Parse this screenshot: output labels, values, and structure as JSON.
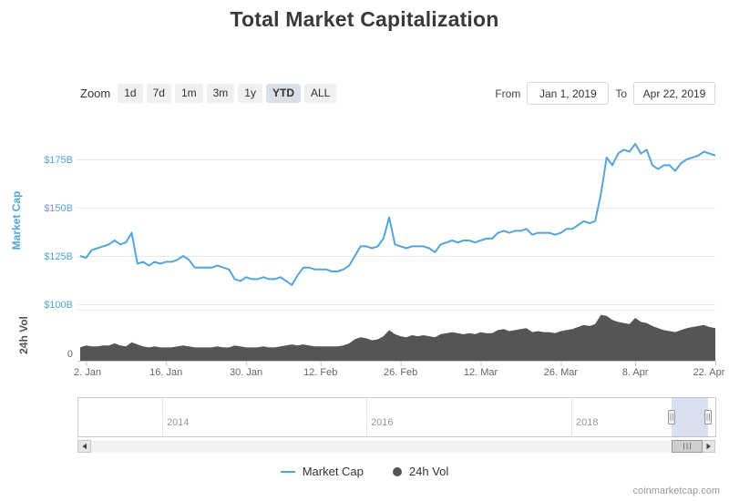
{
  "title": "Total Market Capitalization",
  "watermark": "coinmarketcap.com",
  "colors": {
    "accent": "#54a5da",
    "volume": "#555555",
    "grid": "#e6e6e6",
    "axis_line": "#c9c9c9",
    "muted_text": "#666666",
    "navigator_mask": "rgba(102,133,194,0.25)"
  },
  "range_selector": {
    "zoom_label": "Zoom",
    "buttons": [
      "1d",
      "7d",
      "1m",
      "3m",
      "1y",
      "YTD",
      "ALL"
    ],
    "selected": "YTD",
    "from_label": "From",
    "from_value": "Jan 1, 2019",
    "to_label": "To",
    "to_value": "Apr 22, 2019"
  },
  "legend": {
    "items": [
      {
        "label": "Market Cap",
        "marker": "line",
        "color": "#54a5da"
      },
      {
        "label": "24h Vol",
        "marker": "circle",
        "color": "#555555"
      }
    ]
  },
  "navigator": {
    "year_ticks": [
      "2014",
      "2016",
      "2018"
    ],
    "selected_range": [
      "Jan 1, 2019",
      "Apr 22, 2019"
    ]
  },
  "chart_data": {
    "type": "line",
    "title": "Total Market Capitalization",
    "x_unit": "day",
    "x_start": "Jan 1, 2019",
    "x_end": "Apr 22, 2019",
    "axis_titles": {
      "market_cap": "Market Cap",
      "volume": "24h Vol"
    },
    "y_ticks_market_cap": [
      {
        "label": "$100B",
        "v": 100
      },
      {
        "label": "$125B",
        "v": 125
      },
      {
        "label": "$150B",
        "v": 150
      },
      {
        "label": "$175B",
        "v": 175
      }
    ],
    "y_ticks_volume": [
      {
        "label": "0",
        "v": 0
      }
    ],
    "ylim_market_cap_billions": [
      97,
      190
    ],
    "ylim_volume_billions": [
      0,
      50
    ],
    "x_ticks": [
      {
        "label": "2. Jan",
        "i": 1
      },
      {
        "label": "16. Jan",
        "i": 15
      },
      {
        "label": "30. Jan",
        "i": 29
      },
      {
        "label": "12. Feb",
        "i": 42
      },
      {
        "label": "26. Feb",
        "i": 56
      },
      {
        "label": "12. Mar",
        "i": 70
      },
      {
        "label": "26. Mar",
        "i": 84
      },
      {
        "label": "8. Apr",
        "i": 97
      },
      {
        "label": "22. Apr",
        "i": 111
      }
    ],
    "series": [
      {
        "name": "Market Cap",
        "pane": "top",
        "type": "line",
        "unit": "USD billions",
        "values": [
          125,
          124,
          128,
          129,
          130,
          131,
          133,
          131,
          132,
          137,
          121,
          122,
          120,
          122,
          121,
          122,
          122,
          123,
          125,
          123,
          119,
          119,
          119,
          119,
          120,
          119,
          118,
          113,
          112,
          114,
          113,
          113,
          114,
          113,
          113,
          114,
          112,
          110,
          115,
          119,
          119,
          118,
          118,
          118,
          117,
          117,
          118,
          120,
          125,
          130,
          130,
          129,
          130,
          134,
          145,
          131,
          130,
          129,
          130,
          130,
          130,
          129,
          127,
          131,
          132,
          133,
          132,
          133,
          133,
          132,
          133,
          134,
          134,
          137,
          138,
          137,
          138,
          138,
          139,
          136,
          137,
          137,
          137,
          136,
          137,
          139,
          139,
          141,
          143,
          142,
          143,
          157,
          176,
          172,
          178,
          180,
          179,
          183,
          178,
          180,
          172,
          170,
          172,
          172,
          169,
          173,
          175,
          176,
          177,
          179,
          178,
          177
        ]
      },
      {
        "name": "24h Vol",
        "pane": "bottom",
        "type": "area",
        "unit": "USD billions",
        "values": [
          13,
          15,
          14,
          14,
          15,
          15,
          17,
          15,
          14,
          18,
          16,
          14,
          13,
          14,
          13,
          13,
          13,
          14,
          15,
          14,
          13,
          13,
          13,
          13,
          14,
          13,
          13,
          15,
          14,
          13,
          13,
          13,
          14,
          13,
          13,
          14,
          15,
          16,
          15,
          16,
          15,
          14,
          14,
          14,
          14,
          14,
          15,
          17,
          21,
          23,
          22,
          20,
          21,
          24,
          30,
          26,
          24,
          23,
          25,
          24,
          25,
          24,
          23,
          26,
          27,
          28,
          27,
          26,
          27,
          26,
          28,
          27,
          27,
          30,
          31,
          29,
          30,
          31,
          32,
          28,
          29,
          28,
          28,
          27,
          29,
          30,
          31,
          33,
          35,
          34,
          36,
          45,
          44,
          40,
          38,
          37,
          36,
          42,
          38,
          37,
          34,
          32,
          30,
          29,
          28,
          30,
          32,
          33,
          34,
          35,
          33,
          32
        ]
      }
    ]
  }
}
